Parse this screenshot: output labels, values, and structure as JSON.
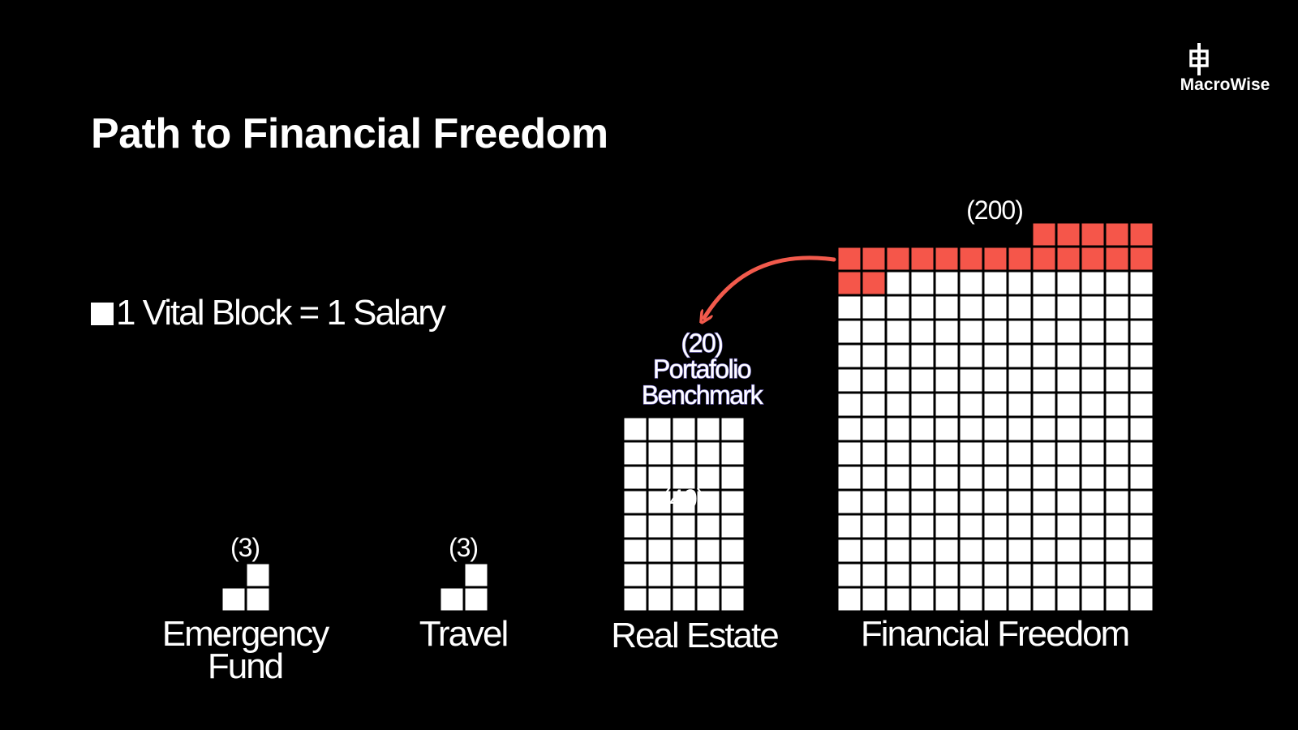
{
  "title": "Path to Financial Freedom",
  "brand": {
    "name": "MacroWise",
    "icon": "macrowise-logo-icon"
  },
  "legend": {
    "text": "1 Vital Block = 1 Salary"
  },
  "colors": {
    "background": "#000000",
    "block": "#ffffff",
    "grid": "#000000",
    "highlight": "#f5564a",
    "arrow": "#f25a4c"
  },
  "annotation": {
    "count": "(20)",
    "line1": "Portafolio",
    "line2": "Benchmark"
  },
  "chart_data": {
    "type": "waffle",
    "unit": "Salary",
    "categories": [
      {
        "label_lines": [
          "Emergency",
          "Fund"
        ],
        "count_label": "(3)",
        "value": 3,
        "highlight": 0
      },
      {
        "label_lines": [
          "Travel"
        ],
        "count_label": "(3)",
        "value": 3,
        "highlight": 0
      },
      {
        "label_lines": [
          "Real Estate"
        ],
        "count_label": "(40)",
        "value": 40,
        "highlight": 0
      },
      {
        "label_lines": [
          "Financial Freedom"
        ],
        "count_label": "(200)",
        "value": 200,
        "highlight": 20
      }
    ]
  }
}
